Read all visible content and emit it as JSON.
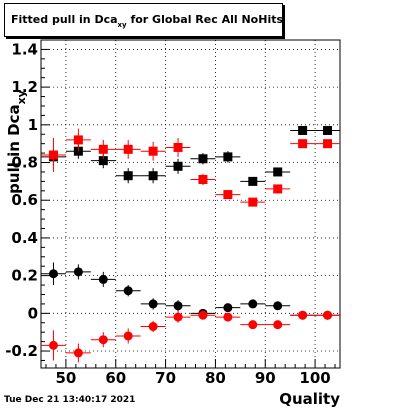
{
  "title": {
    "main": "Fitted pull in Dca",
    "sub": "xy",
    "rest": " for Global Rec All NoHits"
  },
  "timestamp": "Tue Dec 21 13:40:17 2021",
  "chart_data": {
    "type": "scatter",
    "xlabel": "Quality",
    "ylabel": "pull in Dca",
    "ylabel_sub": "xy",
    "xlim": [
      45,
      105
    ],
    "ylim": [
      -0.29,
      1.45
    ],
    "xticks": [
      50,
      60,
      70,
      80,
      90,
      100
    ],
    "yticks": [
      -0.2,
      0,
      0.2,
      0.4,
      0.6,
      0.8,
      1,
      1.2,
      1.4
    ],
    "ytick_labels": [
      "-0.2",
      "0",
      "0.2",
      "0.4",
      "0.6",
      "0.8",
      "1",
      "1.2",
      "1.4"
    ],
    "grid": true,
    "x_halfwidth": 2.5,
    "series": [
      {
        "marker": "square",
        "color": "#000000",
        "x": [
          47.5,
          52.5,
          57.5,
          62.5,
          67.5,
          72.5,
          77.5,
          82.5,
          87.5,
          92.5,
          97.5,
          102.5
        ],
        "y": [
          0.83,
          0.86,
          0.81,
          0.73,
          0.73,
          0.78,
          0.82,
          0.83,
          0.7,
          0.75,
          0.97,
          0.97
        ],
        "err": [
          0.04,
          0.04,
          0.04,
          0.04,
          0.04,
          0.04,
          0.03,
          0.03,
          0.02,
          0.02,
          0.02,
          0.02
        ]
      },
      {
        "marker": "square",
        "color": "#ff0000",
        "x": [
          47.5,
          52.5,
          57.5,
          62.5,
          67.5,
          72.5,
          77.5,
          82.5,
          87.5,
          92.5,
          97.5,
          102.5
        ],
        "y": [
          0.84,
          0.92,
          0.87,
          0.87,
          0.86,
          0.88,
          0.71,
          0.63,
          0.59,
          0.66,
          0.9,
          0.9
        ],
        "err": [
          0.09,
          0.06,
          0.05,
          0.05,
          0.05,
          0.05,
          0.03,
          0.02,
          0.02,
          0.02,
          0.01,
          0.01
        ]
      },
      {
        "marker": "circle",
        "color": "#000000",
        "x": [
          47.5,
          52.5,
          57.5,
          62.5,
          67.5,
          72.5,
          77.5,
          82.5,
          87.5,
          92.5,
          97.5,
          102.5
        ],
        "y": [
          0.21,
          0.22,
          0.18,
          0.12,
          0.05,
          0.04,
          0.0,
          0.03,
          0.05,
          0.04,
          -0.01,
          -0.01
        ],
        "err": [
          0.06,
          0.04,
          0.04,
          0.03,
          0.03,
          0.03,
          0.02,
          0.02,
          0.02,
          0.01,
          0.01,
          0.01
        ]
      },
      {
        "marker": "circle",
        "color": "#ff0000",
        "x": [
          47.5,
          52.5,
          57.5,
          62.5,
          67.5,
          72.5,
          77.5,
          82.5,
          87.5,
          92.5,
          97.5,
          102.5
        ],
        "y": [
          -0.17,
          -0.21,
          -0.14,
          -0.12,
          -0.07,
          -0.02,
          -0.01,
          -0.02,
          -0.06,
          -0.06,
          -0.01,
          -0.01
        ],
        "err": [
          0.08,
          0.05,
          0.04,
          0.04,
          0.03,
          0.03,
          0.02,
          0.02,
          0.02,
          0.01,
          0.01,
          0.01
        ]
      }
    ]
  }
}
